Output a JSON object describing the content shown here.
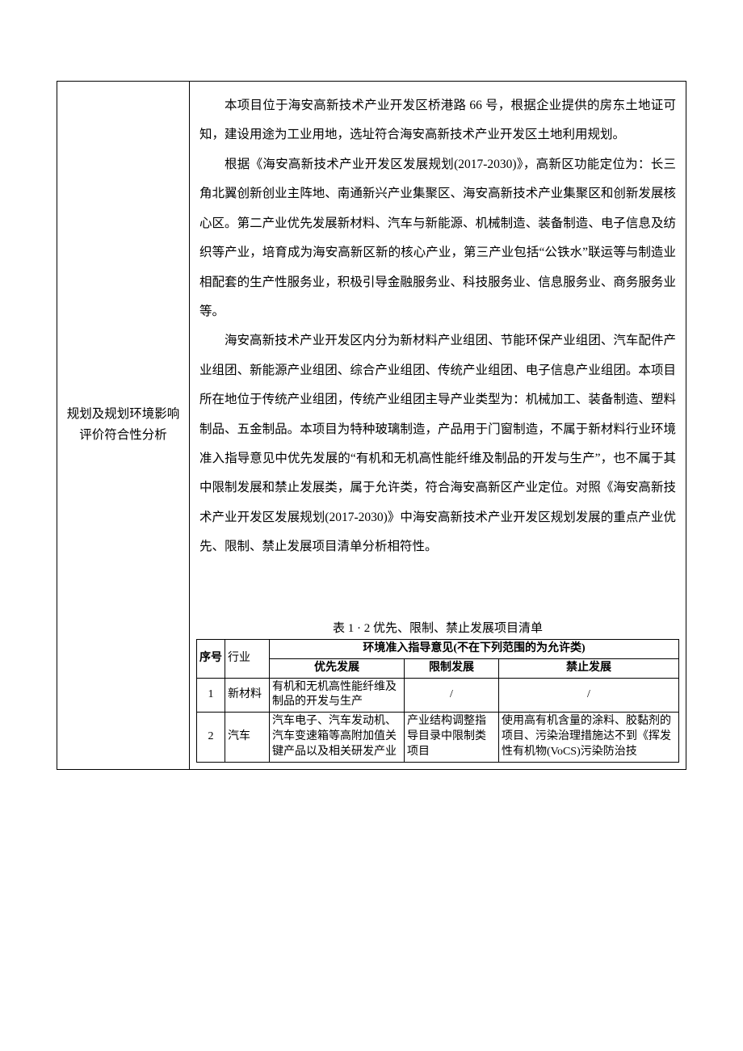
{
  "leftLabel": {
    "line1": "规划及规划环境影响",
    "line2": "评价符合性分析"
  },
  "paragraphs": {
    "p1": "本项目位于海安高新技术产业开发区桥港路 66 号，根据企业提供的房东土地证可知，建设用途为工业用地，选址符合海安高新技术产业开发区土地利用规划。",
    "p2": "根据《海安高新技术产业开发区发展规划(2017-2030)》，高新区功能定位为：长三角北翼创新创业主阵地、南通新兴产业集聚区、海安高新技术产业集聚区和创新发展核心区。第二产业优先发展新材料、汽车与新能源、机械制造、装备制造、电子信息及纺织等产业，培育成为海安高新区新的核心产业，第三产业包括“公铁水”联运等与制造业相配套的生产性服务业，积极引导金融服务业、科技服务业、信息服务业、商务服务业等。",
    "p3": "海安高新技术产业开发区内分为新材料产业组团、节能环保产业组团、汽车配件产业组团、新能源产业组团、综合产业组团、传统产业组团、电子信息产业组团。本项目所在地位于传统产业组团，传统产业组团主导产业类型为：机械加工、装备制造、塑料制品、五金制品。本项目为特种玻璃制造，产品用于门窗制造，不属于新材料行业环境准入指导意见中优先发展的“有机和无机高性能纤维及制品的开发与生产”，也不属于其中限制发展和禁止发展类，属于允许类，符合海安高新区产业定位。对照《海安高新技术产业开发区发展规划(2017-2030)》中海安高新技术产业开发区规划发展的重点产业优先、限制、禁止发展项目清单分析相符性。"
  },
  "innerTable": {
    "title": "表 1 · 2 优先、限制、禁止发展项目清单",
    "headers": {
      "seq": "序号",
      "industry": "行业",
      "group": "环境准入指导意见(不在下列范围的为允许类)",
      "priority": "优先发展",
      "limit": "限制发展",
      "prohibit": "禁止发展"
    },
    "rows": [
      {
        "seq": "1",
        "industry": "新材料",
        "priority": "有机和无机高性能纤维及制品的开发与生产",
        "limit": "/",
        "prohibit": "/"
      },
      {
        "seq": "2",
        "industry": "汽车",
        "priority": "汽车电子、汽车发动机、汽车变速箱等高附加值关键产品以及相关研发产业",
        "limit": "产业结构调整指导目录中限制类项目",
        "prohibit": "使用高有机含量的涂料、胶黏剂的项目、污染治理措施达不到《挥发性有机物(VoCS)污染防治技"
      }
    ]
  }
}
